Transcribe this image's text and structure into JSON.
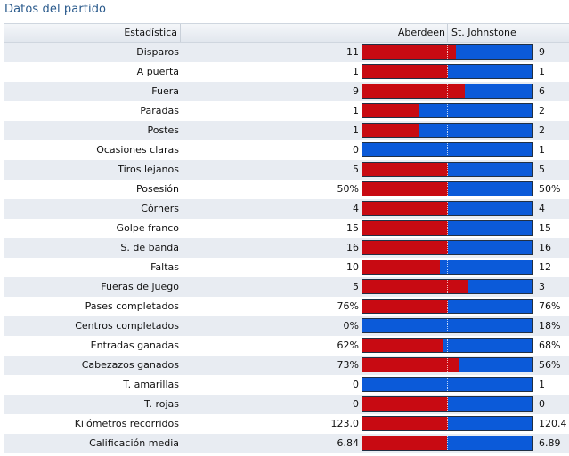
{
  "title": "Datos del partido",
  "header": {
    "stat_col": "Estadística",
    "home_team": "Aberdeen",
    "away_team": "St. Johnstone"
  },
  "colors": {
    "home": "#c80a12",
    "away": "#0b5ad9",
    "title": "#2a5a8c"
  },
  "stats": [
    {
      "label": "Disparos",
      "home": "11",
      "away": "9",
      "home_share": 0.55
    },
    {
      "label": "A puerta",
      "home": "1",
      "away": "1",
      "home_share": 0.5
    },
    {
      "label": "Fuera",
      "home": "9",
      "away": "6",
      "home_share": 0.6
    },
    {
      "label": "Paradas",
      "home": "1",
      "away": "2",
      "home_share": 0.333
    },
    {
      "label": "Postes",
      "home": "1",
      "away": "2",
      "home_share": 0.333
    },
    {
      "label": "Ocasiones claras",
      "home": "0",
      "away": "1",
      "home_share": 0
    },
    {
      "label": "Tiros lejanos",
      "home": "5",
      "away": "5",
      "home_share": 0.5
    },
    {
      "label": "Posesión",
      "home": "50%",
      "away": "50%",
      "home_share": 0.5
    },
    {
      "label": "Córners",
      "home": "4",
      "away": "4",
      "home_share": 0.5
    },
    {
      "label": "Golpe franco",
      "home": "15",
      "away": "15",
      "home_share": 0.5
    },
    {
      "label": "S. de banda",
      "home": "16",
      "away": "16",
      "home_share": 0.5
    },
    {
      "label": "Faltas",
      "home": "10",
      "away": "12",
      "home_share": 0.455
    },
    {
      "label": "Fueras de juego",
      "home": "5",
      "away": "3",
      "home_share": 0.625
    },
    {
      "label": "Pases completados",
      "home": "76%",
      "away": "76%",
      "home_share": 0.5
    },
    {
      "label": "Centros completados",
      "home": "0%",
      "away": "18%",
      "home_share": 0
    },
    {
      "label": "Entradas ganadas",
      "home": "62%",
      "away": "68%",
      "home_share": 0.477
    },
    {
      "label": "Cabezazos ganados",
      "home": "73%",
      "away": "56%",
      "home_share": 0.566
    },
    {
      "label": "T. amarillas",
      "home": "0",
      "away": "1",
      "home_share": 0
    },
    {
      "label": "T. rojas",
      "home": "0",
      "away": "0",
      "home_share": 0.5
    },
    {
      "label": "Kilómetros recorridos",
      "home": "123.0",
      "away": "120.4",
      "home_share": 0.505
    },
    {
      "label": "Calificación media",
      "home": "6.84",
      "away": "6.89",
      "home_share": 0.498
    }
  ]
}
